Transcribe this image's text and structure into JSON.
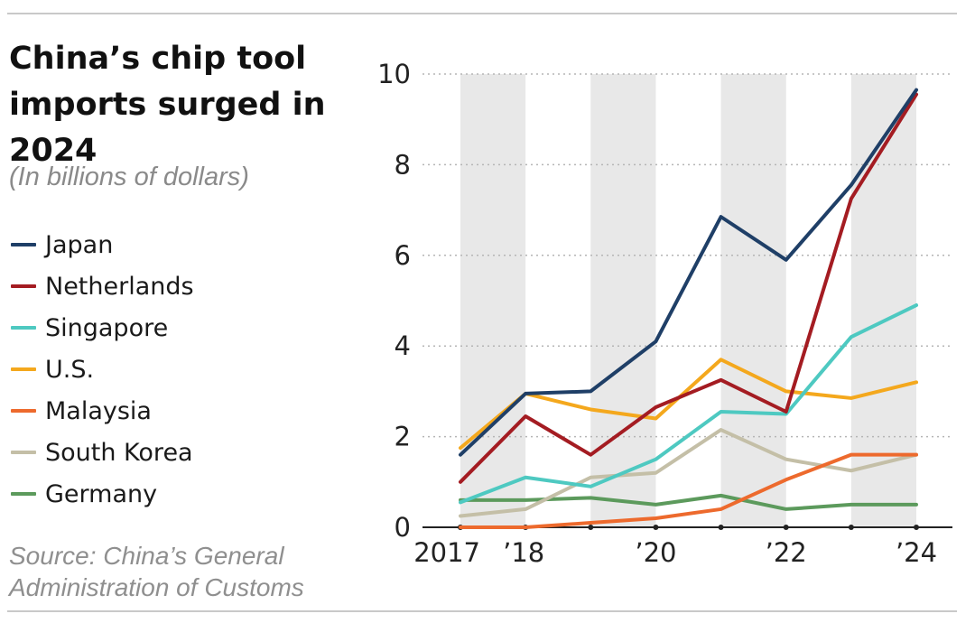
{
  "header": {
    "title": "China’s chip tool imports surged in 2024",
    "subtitle": "(In billions of dollars)"
  },
  "footer": {
    "source": "Source: China’s General Administration of Customs"
  },
  "chart_data": {
    "type": "line",
    "title": "China’s chip tool imports surged in 2024",
    "subtitle": "(In billions of dollars)",
    "xlabel": "",
    "ylabel": "",
    "x": [
      2017,
      2018,
      2019,
      2020,
      2021,
      2022,
      2023,
      2024
    ],
    "x_tick_labels": [
      {
        "x": 2017,
        "label": "2017"
      },
      {
        "x": 2018,
        "label": "’18"
      },
      {
        "x": 2020,
        "label": "’20"
      },
      {
        "x": 2022,
        "label": "’22"
      },
      {
        "x": 2024,
        "label": "’24"
      }
    ],
    "y_ticks": [
      0,
      2,
      4,
      6,
      8,
      10
    ],
    "ylim": [
      0,
      10
    ],
    "grid": "horizontal dotted",
    "background_bands": "alternating gray year columns",
    "legend_position": "left",
    "series": [
      {
        "name": "Japan",
        "color": "#1f3f67",
        "values": [
          1.6,
          2.95,
          3.0,
          4.1,
          6.85,
          5.9,
          7.55,
          9.65
        ]
      },
      {
        "name": "Netherlands",
        "color": "#a41c22",
        "values": [
          1.0,
          2.45,
          1.6,
          2.65,
          3.25,
          2.55,
          7.25,
          9.55
        ]
      },
      {
        "name": "Singapore",
        "color": "#4ec9c1",
        "values": [
          0.55,
          1.1,
          0.9,
          1.5,
          2.55,
          2.5,
          4.2,
          4.9
        ]
      },
      {
        "name": "U.S.",
        "color": "#f4a81d",
        "values": [
          1.75,
          2.95,
          2.6,
          2.4,
          3.7,
          3.0,
          2.85,
          3.2
        ]
      },
      {
        "name": "Malaysia",
        "color": "#ed6a2d",
        "values": [
          0.0,
          0.0,
          0.1,
          0.2,
          0.4,
          1.05,
          1.6,
          1.6
        ]
      },
      {
        "name": "South Korea",
        "color": "#c4bfa7",
        "values": [
          0.25,
          0.4,
          1.1,
          1.2,
          2.15,
          1.5,
          1.25,
          1.6
        ]
      },
      {
        "name": "Germany",
        "color": "#5c9a5c",
        "values": [
          0.6,
          0.6,
          0.65,
          0.5,
          0.7,
          0.4,
          0.5,
          0.5
        ]
      }
    ]
  }
}
